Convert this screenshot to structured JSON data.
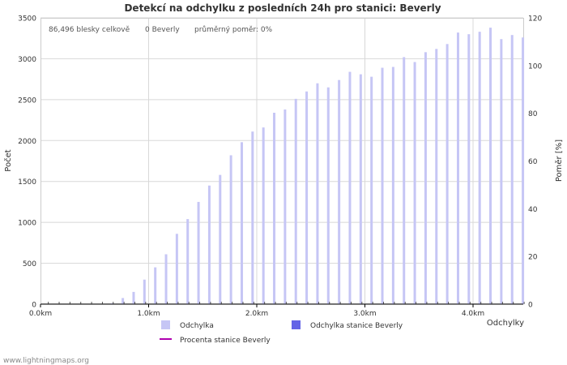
{
  "chart_data": {
    "type": "bar",
    "title": "Detekcí na odchylku z posledních 24h pro stanici: Beverly",
    "stats_text": {
      "total": "86,496 blesky celkově",
      "station": "0 Beverly",
      "ratio": "průměrný poměr: 0%"
    },
    "xlabel": "Odchylky",
    "ylabel_left": "Počet",
    "ylabel_right": "Poměr [%]",
    "x_ticks": [
      "0.0km",
      "1.0km",
      "2.0km",
      "3.0km",
      "4.0km"
    ],
    "y_left_ticks": [
      "0",
      "500",
      "1000",
      "1500",
      "2000",
      "2500",
      "3000",
      "3500"
    ],
    "y_right_ticks": [
      "0",
      "20",
      "40",
      "60",
      "80",
      "100",
      "120"
    ],
    "ylim": [
      0,
      3500
    ],
    "ylim_right": [
      0,
      120
    ],
    "xlim_km": [
      0,
      4.5
    ],
    "bin_km": 0.1,
    "series": [
      {
        "name": "Odchylka",
        "color": "#c6c6f5",
        "values": [
          5,
          5,
          5,
          5,
          5,
          5,
          10,
          75,
          150,
          300,
          450,
          610,
          860,
          1040,
          1250,
          1450,
          1580,
          1820,
          1980,
          2110,
          2160,
          2340,
          2380,
          2510,
          2600,
          2700,
          2650,
          2740,
          2840,
          2810,
          2780,
          2890,
          2900,
          3020,
          2960,
          3080,
          3120,
          3180,
          3320,
          3300,
          3330,
          3380,
          3240,
          3290,
          3260
        ]
      },
      {
        "name": "Odchylka stanice Beverly",
        "color": "#6464e6",
        "values": [
          0,
          0,
          0,
          0,
          0,
          0,
          0,
          0,
          0,
          0,
          0,
          0,
          0,
          0,
          0,
          0,
          0,
          0,
          0,
          0,
          0,
          0,
          0,
          0,
          0,
          0,
          0,
          0,
          0,
          0,
          0,
          0,
          0,
          0,
          0,
          0,
          0,
          0,
          0,
          0,
          0,
          0,
          0,
          0,
          0
        ]
      },
      {
        "name": "Procenta stanice Beverly",
        "color": "#b000b0",
        "values": []
      }
    ],
    "legend": [
      {
        "label": "Odchylka",
        "kind": "box",
        "color": "#c6c6f5"
      },
      {
        "label": "Odchylka stanice Beverly",
        "kind": "box",
        "color": "#6464e6"
      },
      {
        "label": "Procenta stanice Beverly",
        "kind": "line",
        "color": "#b000b0"
      }
    ],
    "grid": true
  },
  "footer": "www.lightningmaps.org"
}
